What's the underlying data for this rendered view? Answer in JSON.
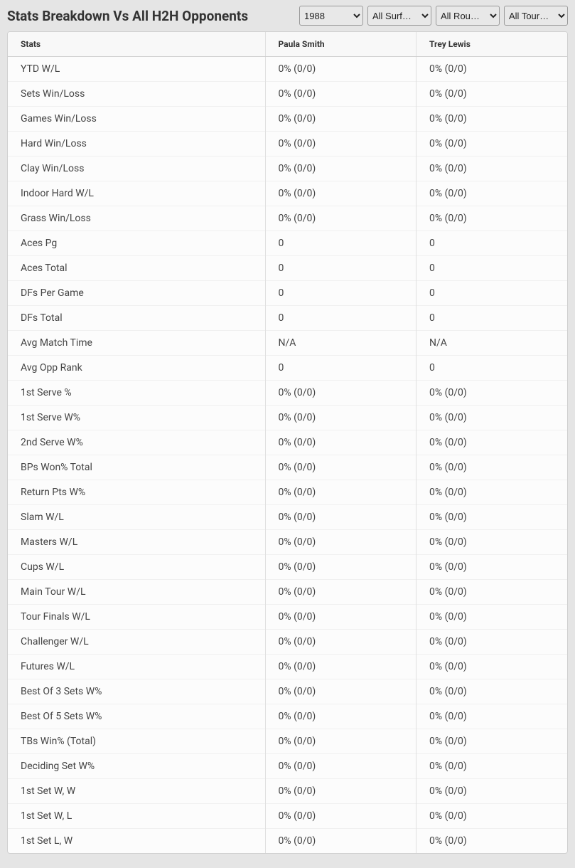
{
  "header": {
    "title": "Stats Breakdown Vs All H2H Opponents"
  },
  "filters": {
    "year": {
      "selected": "1988",
      "options": [
        "1988"
      ]
    },
    "surface": {
      "selected": "All Surf…",
      "options": [
        "All Surf…"
      ]
    },
    "round": {
      "selected": "All Rou…",
      "options": [
        "All Rou…"
      ]
    },
    "tour": {
      "selected": "All Tour…",
      "options": [
        "All Tour…"
      ]
    }
  },
  "table": {
    "columns": {
      "stats": "Stats",
      "player1": "Paula Smith",
      "player2": "Trey Lewis"
    },
    "rows": [
      {
        "stat": "YTD W/L",
        "p1": "0% (0/0)",
        "p2": "0% (0/0)"
      },
      {
        "stat": "Sets Win/Loss",
        "p1": "0% (0/0)",
        "p2": "0% (0/0)"
      },
      {
        "stat": "Games Win/Loss",
        "p1": "0% (0/0)",
        "p2": "0% (0/0)"
      },
      {
        "stat": "Hard Win/Loss",
        "p1": "0% (0/0)",
        "p2": "0% (0/0)"
      },
      {
        "stat": "Clay Win/Loss",
        "p1": "0% (0/0)",
        "p2": "0% (0/0)"
      },
      {
        "stat": "Indoor Hard W/L",
        "p1": "0% (0/0)",
        "p2": "0% (0/0)"
      },
      {
        "stat": "Grass Win/Loss",
        "p1": "0% (0/0)",
        "p2": "0% (0/0)"
      },
      {
        "stat": "Aces Pg",
        "p1": "0",
        "p2": "0"
      },
      {
        "stat": "Aces Total",
        "p1": "0",
        "p2": "0"
      },
      {
        "stat": "DFs Per Game",
        "p1": "0",
        "p2": "0"
      },
      {
        "stat": "DFs Total",
        "p1": "0",
        "p2": "0"
      },
      {
        "stat": "Avg Match Time",
        "p1": "N/A",
        "p2": "N/A"
      },
      {
        "stat": "Avg Opp Rank",
        "p1": "0",
        "p2": "0"
      },
      {
        "stat": "1st Serve %",
        "p1": "0% (0/0)",
        "p2": "0% (0/0)"
      },
      {
        "stat": "1st Serve W%",
        "p1": "0% (0/0)",
        "p2": "0% (0/0)"
      },
      {
        "stat": "2nd Serve W%",
        "p1": "0% (0/0)",
        "p2": "0% (0/0)"
      },
      {
        "stat": "BPs Won% Total",
        "p1": "0% (0/0)",
        "p2": "0% (0/0)"
      },
      {
        "stat": "Return Pts W%",
        "p1": "0% (0/0)",
        "p2": "0% (0/0)"
      },
      {
        "stat": "Slam W/L",
        "p1": "0% (0/0)",
        "p2": "0% (0/0)"
      },
      {
        "stat": "Masters W/L",
        "p1": "0% (0/0)",
        "p2": "0% (0/0)"
      },
      {
        "stat": "Cups W/L",
        "p1": "0% (0/0)",
        "p2": "0% (0/0)"
      },
      {
        "stat": "Main Tour W/L",
        "p1": "0% (0/0)",
        "p2": "0% (0/0)"
      },
      {
        "stat": "Tour Finals W/L",
        "p1": "0% (0/0)",
        "p2": "0% (0/0)"
      },
      {
        "stat": "Challenger W/L",
        "p1": "0% (0/0)",
        "p2": "0% (0/0)"
      },
      {
        "stat": "Futures W/L",
        "p1": "0% (0/0)",
        "p2": "0% (0/0)"
      },
      {
        "stat": "Best Of 3 Sets W%",
        "p1": "0% (0/0)",
        "p2": "0% (0/0)"
      },
      {
        "stat": "Best Of 5 Sets W%",
        "p1": "0% (0/0)",
        "p2": "0% (0/0)"
      },
      {
        "stat": "TBs Win% (Total)",
        "p1": "0% (0/0)",
        "p2": "0% (0/0)"
      },
      {
        "stat": "Deciding Set W%",
        "p1": "0% (0/0)",
        "p2": "0% (0/0)"
      },
      {
        "stat": "1st Set W, W",
        "p1": "0% (0/0)",
        "p2": "0% (0/0)"
      },
      {
        "stat": "1st Set W, L",
        "p1": "0% (0/0)",
        "p2": "0% (0/0)"
      },
      {
        "stat": "1st Set L, W",
        "p1": "0% (0/0)",
        "p2": "0% (0/0)"
      }
    ]
  }
}
